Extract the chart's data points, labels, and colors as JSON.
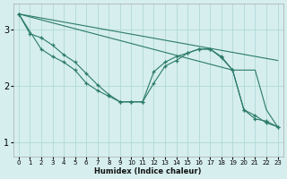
{
  "xlabel": "Humidex (Indice chaleur)",
  "bg_color": "#d6eeee",
  "line_color": "#2a7a6a",
  "grid_color": "#b0d8d8",
  "xlim": [
    -0.5,
    23.5
  ],
  "ylim": [
    0.75,
    3.45
  ],
  "yticks": [
    1,
    2,
    3
  ],
  "xticks": [
    0,
    1,
    2,
    3,
    4,
    5,
    6,
    7,
    8,
    9,
    10,
    11,
    12,
    13,
    14,
    15,
    16,
    17,
    18,
    19,
    20,
    21,
    22,
    23
  ],
  "series": [
    {
      "x": [
        0,
        23
      ],
      "y": [
        3.27,
        2.45
      ],
      "has_markers": false
    },
    {
      "x": [
        0,
        19,
        20,
        21,
        22,
        23
      ],
      "y": [
        3.27,
        2.28,
        2.28,
        2.28,
        1.58,
        1.28
      ],
      "has_markers": false
    },
    {
      "x": [
        0,
        1,
        2,
        3,
        4,
        5,
        6,
        7,
        8,
        9,
        10,
        11,
        12,
        13,
        14,
        15,
        16,
        17,
        18,
        19,
        20,
        21,
        22,
        23
      ],
      "y": [
        3.27,
        2.92,
        2.85,
        2.72,
        2.55,
        2.42,
        2.22,
        2.02,
        1.85,
        1.72,
        1.72,
        1.72,
        2.05,
        2.35,
        2.45,
        2.58,
        2.65,
        2.65,
        2.52,
        2.28,
        1.58,
        1.42,
        1.38,
        1.28
      ],
      "has_markers": true
    },
    {
      "x": [
        0,
        2,
        3,
        4,
        5,
        6,
        7,
        8,
        9,
        10,
        11,
        12,
        13,
        14,
        15,
        16,
        17,
        18,
        19,
        20,
        21,
        22,
        23
      ],
      "y": [
        3.27,
        2.65,
        2.52,
        2.42,
        2.28,
        2.05,
        1.92,
        1.82,
        1.72,
        1.72,
        1.72,
        2.25,
        2.42,
        2.52,
        2.58,
        2.65,
        2.65,
        2.5,
        2.28,
        1.58,
        1.48,
        1.35,
        1.28
      ],
      "has_markers": true
    }
  ]
}
